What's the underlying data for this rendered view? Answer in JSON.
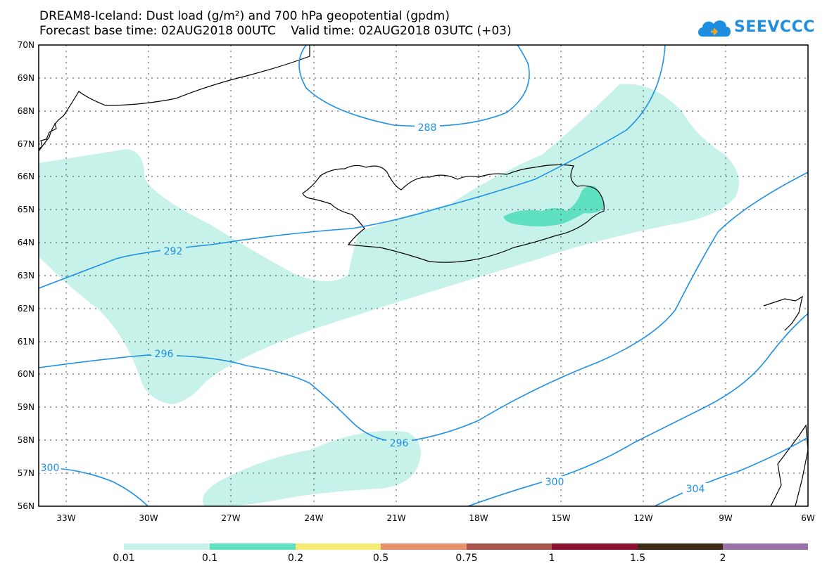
{
  "title": {
    "line1": "DREAM8-Iceland: Dust load (g/m²) and 700 hPa geopotential (gpdm)",
    "line2": "Forecast base time: 02AUG2018 00UTC    Valid time: 02AUG2018 03UTC (+03)"
  },
  "logo": {
    "text": "SEEVCCC",
    "icon": "cloud-icon",
    "color": "#1e8fe0"
  },
  "axes": {
    "lat_labels": [
      "70N",
      "69N",
      "68N",
      "67N",
      "66N",
      "65N",
      "64N",
      "63N",
      "62N",
      "61N",
      "60N",
      "59N",
      "58N",
      "57N",
      "56N"
    ],
    "lon_labels": [
      "33W",
      "30W",
      "27W",
      "24W",
      "21W",
      "18W",
      "15W",
      "12W",
      "9W",
      "6W"
    ]
  },
  "contours": {
    "color": "#1e90e6",
    "labels": [
      "288",
      "292",
      "296",
      "296",
      "300",
      "300",
      "304"
    ]
  },
  "dust": {
    "light_color": "#c6f2ea",
    "dark_color": "#5fe0c0"
  },
  "colorbar": {
    "labels": [
      "0.01",
      "0.1",
      "0.2",
      "0.5",
      "0.75",
      "1",
      "1.5",
      "2"
    ],
    "colors": [
      "#c6f2ea",
      "#5fe0c0",
      "#f5ec76",
      "#e88f6b",
      "#a9554a",
      "#8a1130",
      "#3e2a14",
      "#9a72a8"
    ]
  }
}
